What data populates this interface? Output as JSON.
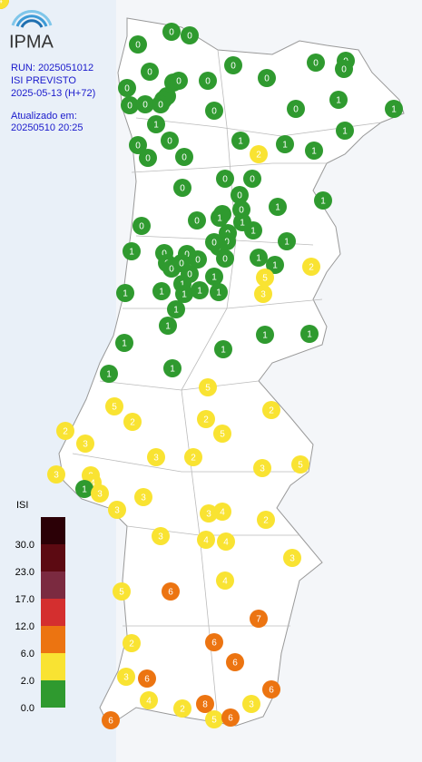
{
  "header": {
    "logo": "IPMA",
    "run": "RUN: 2025051012",
    "product": "ISI PREVISTO",
    "forecast": "2025-05-13 (H+72)",
    "updated_label": "Atualizado em:",
    "updated": "20250510 20:25"
  },
  "legend": {
    "title": "ISI",
    "ticks": [
      {
        "value": 30,
        "label": "30.0"
      },
      {
        "value": 23,
        "label": "23.0"
      },
      {
        "value": 17,
        "label": "17.0"
      },
      {
        "value": 12,
        "label": "12.0"
      },
      {
        "value": 6,
        "label": "6.0"
      },
      {
        "value": 2,
        "label": "2.0"
      },
      {
        "value": 0,
        "label": "0.0"
      }
    ],
    "colors": [
      "#2b0006",
      "#5c0a12",
      "#7b2a40",
      "#d42f2f",
      "#ec7411",
      "#f9e332",
      "#2f9a2f"
    ]
  },
  "stations": [
    0,
    0,
    0,
    0,
    0,
    0,
    0,
    0,
    0,
    0,
    0,
    0,
    0,
    0,
    0,
    0,
    0,
    0,
    1,
    0,
    1,
    1,
    1,
    1,
    0,
    0,
    0,
    0,
    0,
    1,
    2,
    1,
    0,
    0,
    0,
    0,
    0,
    1,
    1,
    0,
    0,
    0,
    0,
    1,
    0,
    1,
    1,
    1,
    0,
    0,
    1,
    0,
    0,
    0,
    0,
    0,
    0,
    0,
    0,
    1,
    1,
    1,
    1,
    1,
    1,
    2,
    5,
    3,
    1,
    1,
    1,
    1,
    1,
    1,
    1,
    1,
    1,
    1,
    1,
    5,
    5,
    2,
    2,
    2,
    5,
    2,
    3,
    3,
    2,
    3,
    5,
    3,
    2,
    4,
    1,
    3,
    3,
    3,
    3,
    4,
    2,
    3,
    4,
    4,
    3,
    4,
    5,
    6,
    7,
    2,
    6,
    6,
    3,
    6,
    6,
    4,
    2,
    8,
    3,
    5,
    6,
    6,
    8,
    6,
    4
  ]
}
